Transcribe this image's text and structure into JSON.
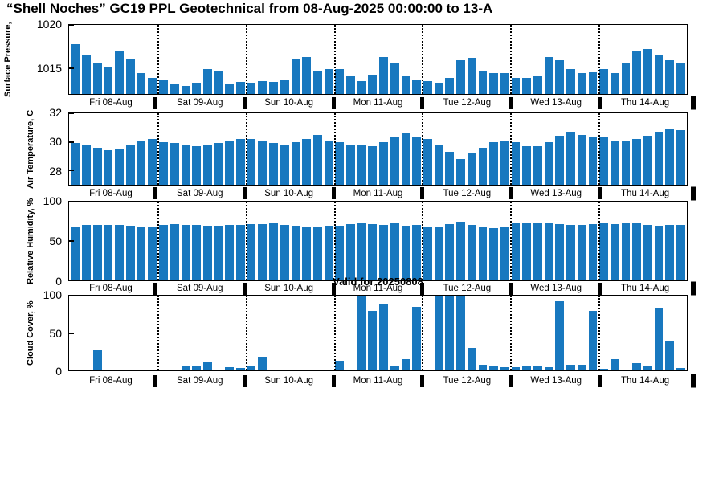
{
  "figure": {
    "title": "“Shell Noches”  GC19 PPL  Geotechnical from 08-Aug-2025 00:00:00 to 13-A",
    "annotation": "Valid for 20250808"
  },
  "colors": {
    "bar": "#1878bf",
    "axis": "#000000"
  },
  "days": [
    "Fri 08-Aug",
    "Sat 09-Aug",
    "Sun 10-Aug",
    "Mon 11-Aug",
    "Tue 12-Aug",
    "Wed 13-Aug",
    "Thu 14-Aug"
  ],
  "chart_data": [
    {
      "type": "bar",
      "ylabel": "Surface Pressure,",
      "ylim": [
        1012,
        1020
      ],
      "yticks": [
        1015,
        1020
      ],
      "categories": [
        "Fri 08-Aug",
        "Sat 09-Aug",
        "Sun 10-Aug",
        "Mon 11-Aug",
        "Tue 12-Aug",
        "Wed 13-Aug",
        "Thu 14-Aug"
      ],
      "values": [
        [
          1017.8,
          1016.5,
          1015.6,
          1015.2,
          1016.9,
          1016.1,
          1014.4,
          1013.9
        ],
        [
          1013.6,
          1013.1,
          1012.9,
          1013.3,
          1014.9,
          1014.7,
          1013.1,
          1013.4
        ],
        [
          1013.3,
          1013.5,
          1013.4,
          1013.7,
          1016.1,
          1016.3,
          1014.6,
          1014.9
        ],
        [
          1014.9,
          1014.1,
          1013.5,
          1014.2,
          1016.3,
          1015.6,
          1014.1,
          1013.7
        ],
        [
          1013.5,
          1013.3,
          1013.9,
          1015.9,
          1016.2,
          1014.7,
          1014.4,
          1014.4
        ],
        [
          1013.9,
          1013.9,
          1014.1,
          1016.3,
          1015.9,
          1014.9,
          1014.4,
          1014.5
        ],
        [
          1014.9,
          1014.4,
          1015.6,
          1016.9,
          1017.2,
          1016.6,
          1015.9,
          1015.6
        ]
      ]
    },
    {
      "type": "bar",
      "ylabel": "Air Temperature, C",
      "ylim": [
        27,
        32
      ],
      "yticks": [
        28,
        30,
        32
      ],
      "categories": [
        "Fri 08-Aug",
        "Sat 09-Aug",
        "Sun 10-Aug",
        "Mon 11-Aug",
        "Tue 12-Aug",
        "Wed 13-Aug",
        "Thu 14-Aug"
      ],
      "values": [
        [
          29.9,
          29.8,
          29.6,
          29.4,
          29.5,
          29.8,
          30.1,
          30.2
        ],
        [
          30.0,
          29.9,
          29.8,
          29.7,
          29.8,
          29.9,
          30.1,
          30.2
        ],
        [
          30.2,
          30.1,
          29.9,
          29.8,
          30.0,
          30.2,
          30.5,
          30.1
        ],
        [
          30.0,
          29.8,
          29.8,
          29.7,
          30.0,
          30.3,
          30.6,
          30.3
        ],
        [
          30.2,
          29.8,
          29.3,
          28.8,
          29.2,
          29.6,
          30.0,
          30.1
        ],
        [
          30.0,
          29.7,
          29.7,
          30.0,
          30.4,
          30.7,
          30.5,
          30.3
        ],
        [
          30.3,
          30.1,
          30.1,
          30.2,
          30.4,
          30.7,
          30.9,
          30.8
        ]
      ]
    },
    {
      "type": "bar",
      "ylabel": "Relative Humidity, %",
      "ylim": [
        0,
        100
      ],
      "yticks": [
        0,
        50,
        100
      ],
      "categories": [
        "Fri 08-Aug",
        "Sat 09-Aug",
        "Sun 10-Aug",
        "Mon 11-Aug",
        "Tue 12-Aug",
        "Wed 13-Aug",
        "Thu 14-Aug"
      ],
      "values": [
        [
          68,
          70,
          70,
          70,
          70,
          69,
          68,
          67
        ],
        [
          70,
          71,
          70,
          70,
          69,
          69,
          70,
          70
        ],
        [
          71,
          71,
          72,
          70,
          69,
          68,
          68,
          69
        ],
        [
          69,
          71,
          72,
          71,
          70,
          72,
          69,
          70
        ],
        [
          67,
          68,
          71,
          74,
          70,
          67,
          66,
          68
        ],
        [
          72,
          72,
          73,
          72,
          71,
          70,
          70,
          71
        ],
        [
          72,
          71,
          72,
          73,
          70,
          69,
          70,
          70
        ]
      ]
    },
    {
      "type": "bar",
      "ylabel": "Cloud Cover, %",
      "ylim": [
        0,
        100
      ],
      "yticks": [
        0,
        50,
        100
      ],
      "categories": [
        "Fri 08-Aug",
        "Sat 09-Aug",
        "Sun 10-Aug",
        "Mon 11-Aug",
        "Tue 12-Aug",
        "Wed 13-Aug",
        "Thu 14-Aug"
      ],
      "values": [
        [
          0,
          1,
          27,
          0,
          0,
          1,
          0,
          0
        ],
        [
          1,
          0,
          6,
          5,
          12,
          0,
          4,
          3
        ],
        [
          5,
          18,
          0,
          0,
          0,
          0,
          0,
          0
        ],
        [
          13,
          0,
          100,
          80,
          88,
          6,
          15,
          85
        ],
        [
          0,
          100,
          100,
          100,
          30,
          8,
          5,
          4
        ],
        [
          4,
          7,
          5,
          4,
          92,
          8,
          8,
          80
        ],
        [
          2,
          15,
          0,
          10,
          6,
          84,
          39,
          3
        ]
      ]
    }
  ]
}
